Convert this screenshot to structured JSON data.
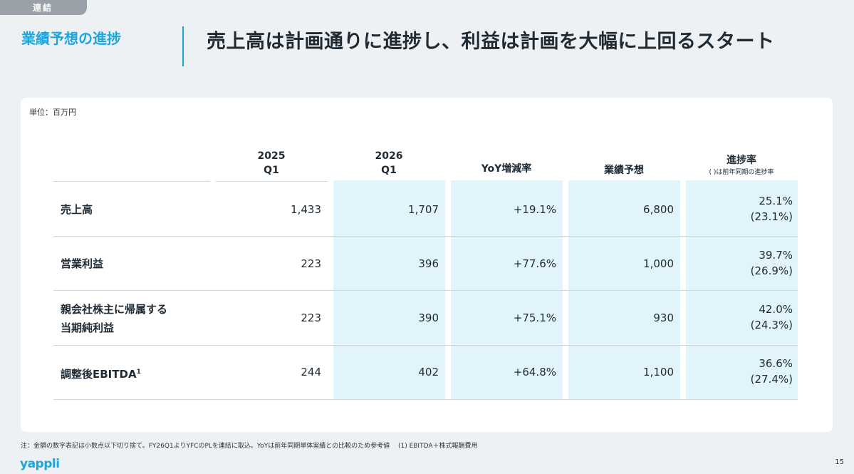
{
  "tag": "連結",
  "section_title": "業績予想の進捗",
  "headline": "売上高は計画通りに進捗し、利益は計画を大幅に上回るスタート",
  "unit": "単位：百万円",
  "headers": {
    "c1_line1": "2025",
    "c1_line2": "Q1",
    "c2_line1": "2026",
    "c2_line2": "Q1",
    "c3": "YoY増減率",
    "c4": "業績予想",
    "c5": "進捗率",
    "c5_note": "( )は前年同期の進捗率"
  },
  "rows": [
    {
      "label_line1": "売上高",
      "label_line2": "",
      "sup": "",
      "q1_2025": "1,433",
      "q1_2026": "1,707",
      "yoy": "+19.1%",
      "forecast": "6,800",
      "progress": "25.1%",
      "progress_prev": "(23.1%)"
    },
    {
      "label_line1": "営業利益",
      "label_line2": "",
      "sup": "",
      "q1_2025": "223",
      "q1_2026": "396",
      "yoy": "+77.6%",
      "forecast": "1,000",
      "progress": "39.7%",
      "progress_prev": "(26.9%)"
    },
    {
      "label_line1": "親会社株主に帰属する",
      "label_line2": "当期純利益",
      "sup": "",
      "q1_2025": "223",
      "q1_2026": "390",
      "yoy": "+75.1%",
      "forecast": "930",
      "progress": "42.0%",
      "progress_prev": "(24.3%)"
    },
    {
      "label_line1": "調整後EBITDA",
      "label_line2": "",
      "sup": "1",
      "q1_2025": "244",
      "q1_2026": "402",
      "yoy": "+64.8%",
      "forecast": "1,100",
      "progress": "36.6%",
      "progress_prev": "(27.4%)"
    }
  ],
  "footnote": "注：金額の数字表記は小数点以下切り捨て。FY26Q1よりYFCのPLを連結に取込。YoYは前年同期単体実績との比較のため参考値　 (1) EBITDA＋株式報酬費用",
  "logo": "yappli",
  "page_number": "15"
}
